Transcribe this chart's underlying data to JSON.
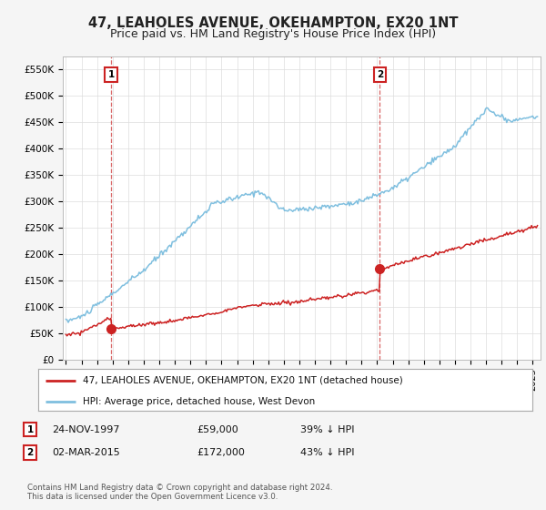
{
  "title": "47, LEAHOLES AVENUE, OKEHAMPTON, EX20 1NT",
  "subtitle": "Price paid vs. HM Land Registry's House Price Index (HPI)",
  "ylabel_ticks": [
    "£0",
    "£50K",
    "£100K",
    "£150K",
    "£200K",
    "£250K",
    "£300K",
    "£350K",
    "£400K",
    "£450K",
    "£500K",
    "£550K"
  ],
  "ytick_values": [
    0,
    50000,
    100000,
    150000,
    200000,
    250000,
    300000,
    350000,
    400000,
    450000,
    500000,
    550000
  ],
  "ylim": [
    0,
    575000
  ],
  "xlim_start": 1994.8,
  "xlim_end": 2025.5,
  "purchase1_x": 1997.9,
  "purchase1_y": 59000,
  "purchase1_label": "1",
  "purchase2_x": 2015.17,
  "purchase2_y": 172000,
  "purchase2_label": "2",
  "hpi_color": "#7fbfdf",
  "price_color": "#cc2222",
  "dashed_color": "#cc3333",
  "grid_color": "#dddddd",
  "bg_color": "#f5f5f5",
  "plot_bg_color": "#ffffff",
  "legend_entry1": "47, LEAHOLES AVENUE, OKEHAMPTON, EX20 1NT (detached house)",
  "legend_entry2": "HPI: Average price, detached house, West Devon",
  "table_row1": [
    "1",
    "24-NOV-1997",
    "£59,000",
    "39% ↓ HPI"
  ],
  "table_row2": [
    "2",
    "02-MAR-2015",
    "£172,000",
    "43% ↓ HPI"
  ],
  "footnote": "Contains HM Land Registry data © Crown copyright and database right 2024.\nThis data is licensed under the Open Government Licence v3.0.",
  "title_fontsize": 10.5,
  "subtitle_fontsize": 9,
  "tick_fontsize": 7.5,
  "annotation_fontsize": 8
}
